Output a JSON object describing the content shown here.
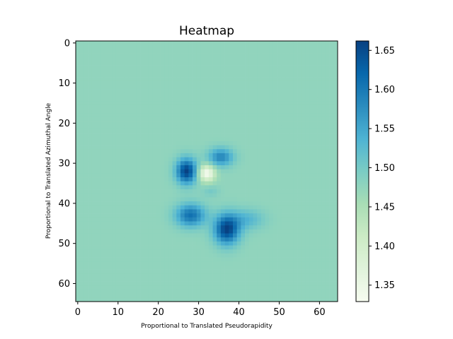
{
  "chart_data": {
    "type": "heatmap",
    "title": "Heatmap",
    "xlabel": "Proportional to Translated Pseudorapidity",
    "ylabel": "Proportional to Translated Azimuthal Angle",
    "grid_size": [
      65,
      65
    ],
    "xlim": [
      -0.5,
      64.5
    ],
    "ylim": [
      64.5,
      -0.5
    ],
    "y_axis_inverted": true,
    "x_ticks": [
      0,
      10,
      20,
      30,
      40,
      50,
      60
    ],
    "y_ticks": [
      0,
      10,
      20,
      30,
      40,
      50,
      60
    ],
    "colormap": "GnBu",
    "colormap_stops": [
      "#f7fcf0",
      "#e0f3db",
      "#ccebc5",
      "#a8ddb5",
      "#7bccc4",
      "#4eb3d3",
      "#2b8cbe",
      "#0868ac",
      "#084081"
    ],
    "colorbar": {
      "min": 1.329,
      "max": 1.662,
      "ticks": [
        1.35,
        1.4,
        1.45,
        1.5,
        1.55,
        1.6,
        1.65
      ],
      "tick_labels": [
        "1.35",
        "1.40",
        "1.45",
        "1.50",
        "1.55",
        "1.60",
        "1.65"
      ]
    },
    "background_value": 1.475,
    "features": [
      {
        "x": 27,
        "y": 32,
        "peak": 1.66,
        "sx": 1.8,
        "sy": 2.2
      },
      {
        "x": 28,
        "y": 43,
        "peak": 1.61,
        "sx": 2.6,
        "sy": 2.0
      },
      {
        "x": 37,
        "y": 46.5,
        "peak": 1.66,
        "sx": 2.2,
        "sy": 2.6
      },
      {
        "x": 35.5,
        "y": 28.5,
        "peak": 1.585,
        "sx": 2.2,
        "sy": 1.6
      },
      {
        "x": 33,
        "y": 37,
        "peak": 1.5,
        "sx": 1.5,
        "sy": 1.0
      },
      {
        "x": 42,
        "y": 44,
        "peak": 1.53,
        "sx": 3.0,
        "sy": 1.8
      },
      {
        "x": 32,
        "y": 32.5,
        "peak": 1.33,
        "sx": 1.4,
        "sy": 1.4
      }
    ]
  }
}
